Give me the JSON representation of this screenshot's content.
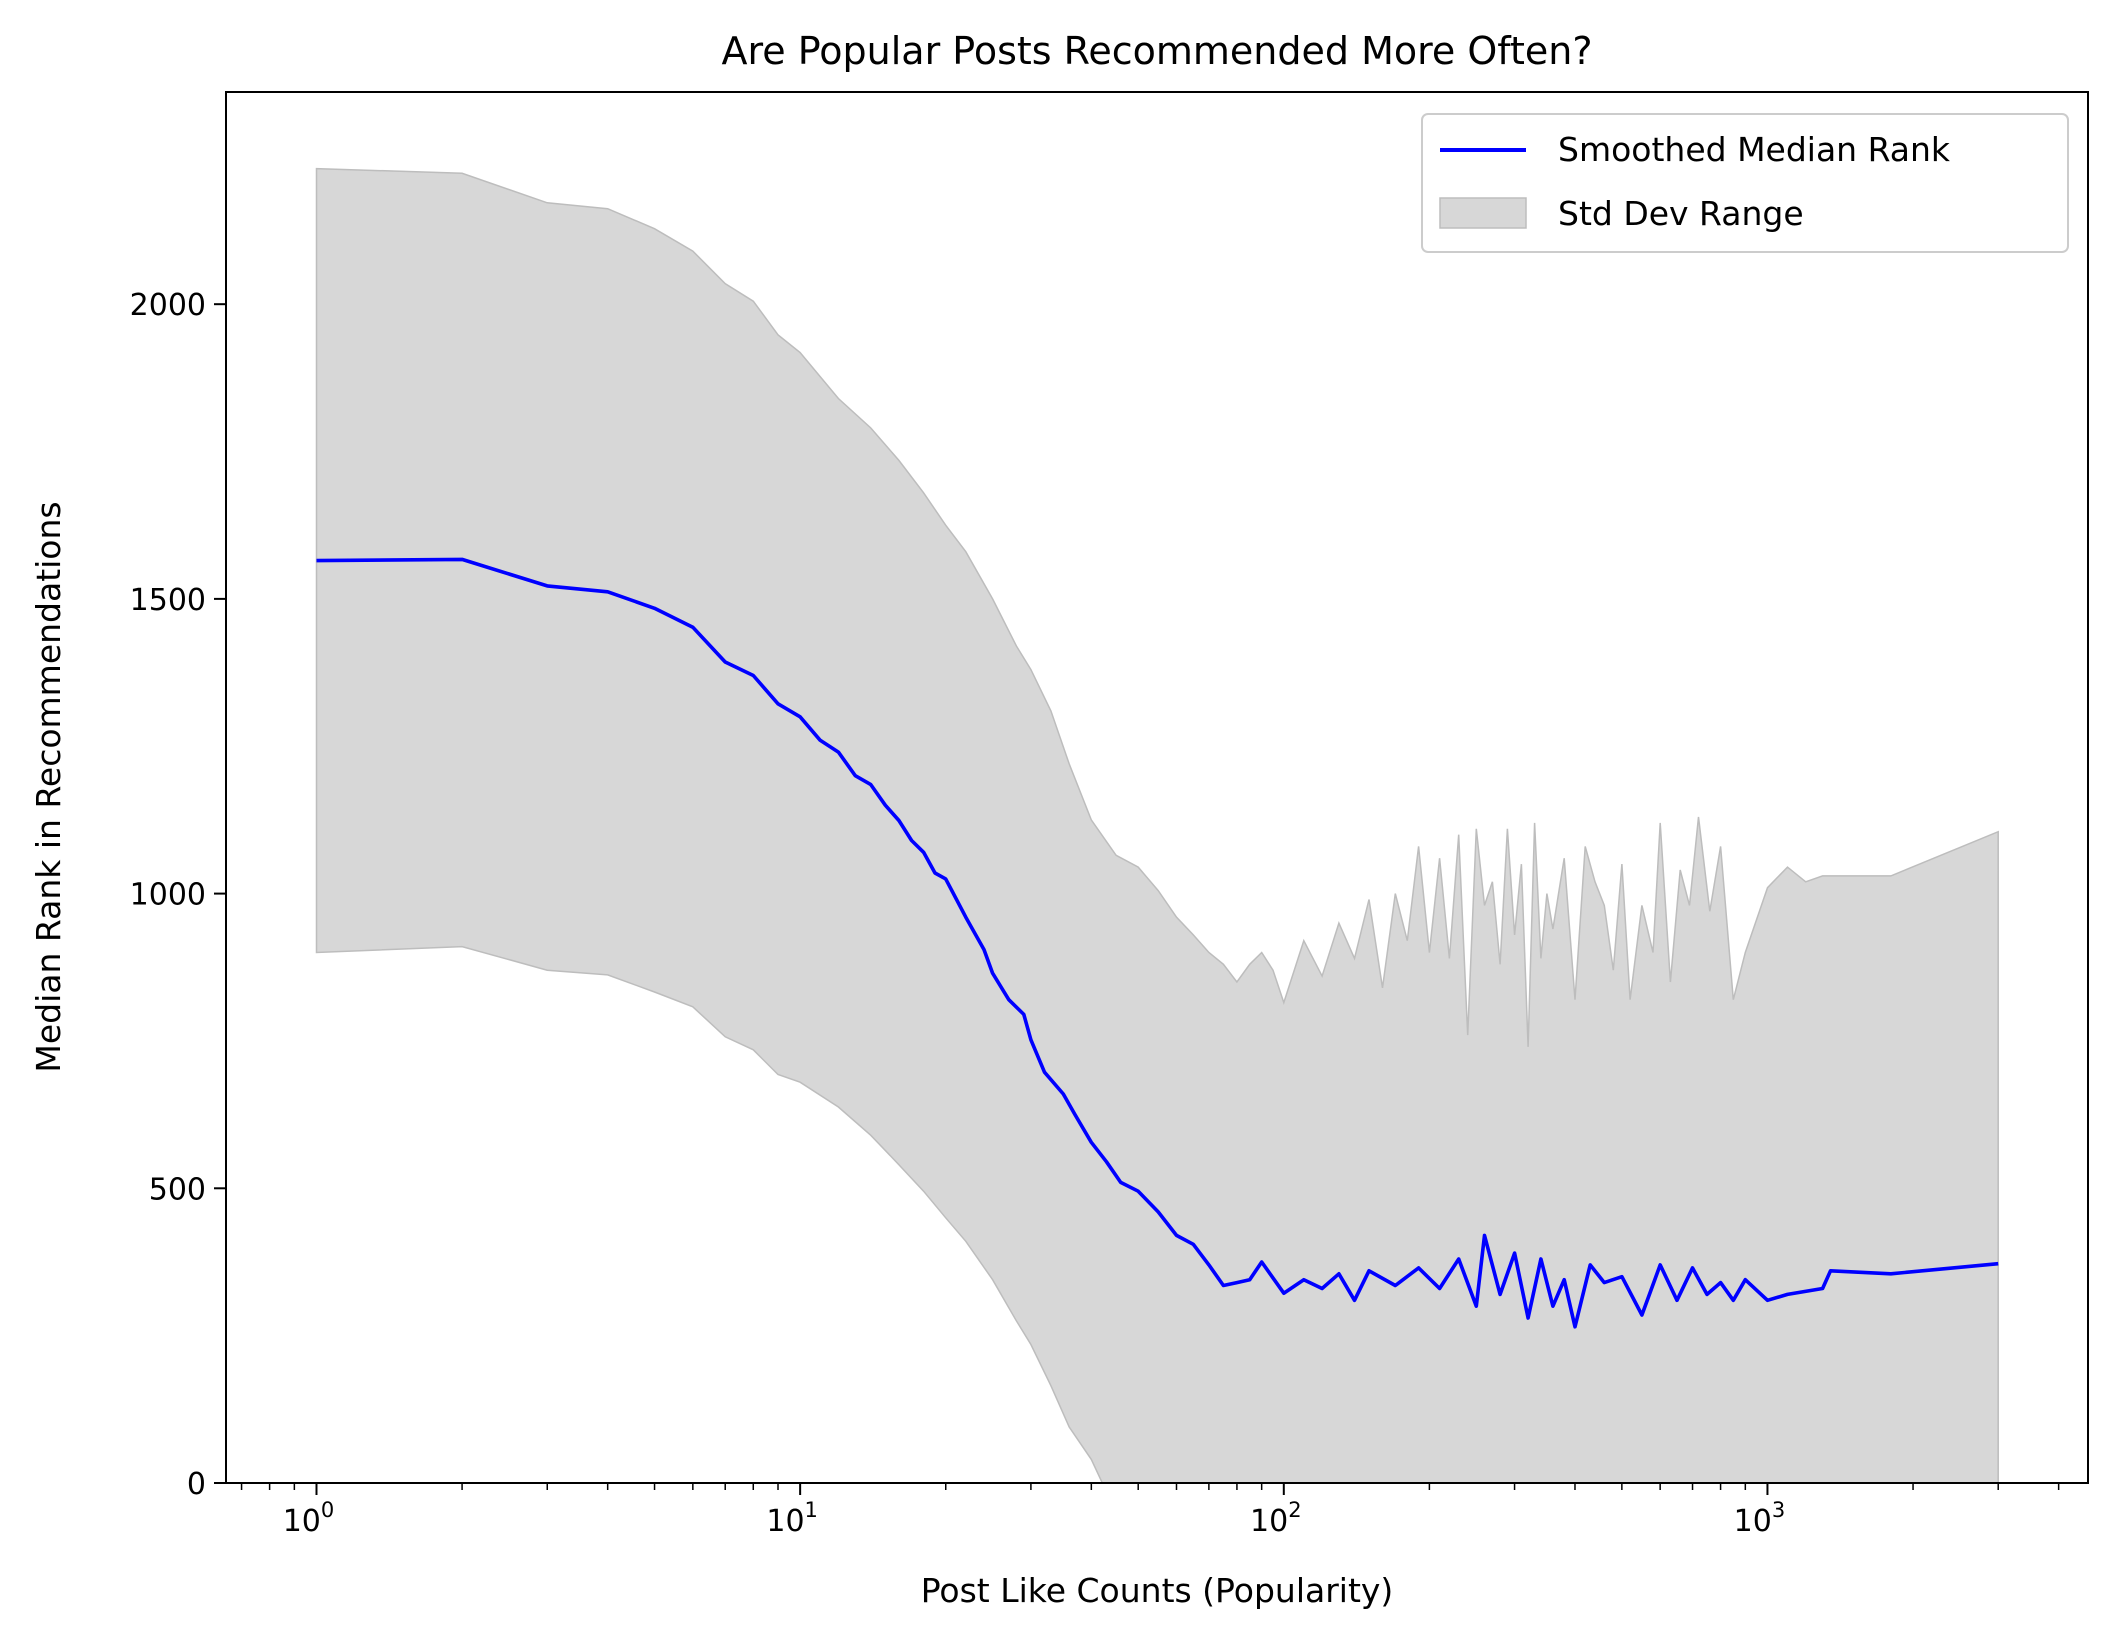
{
  "chart_data": {
    "type": "line",
    "title": "Are Popular Posts Recommended More Often?",
    "xlabel": "Post Like Counts (Popularity)",
    "ylabel": "Median Rank in Recommendations",
    "xscale": "log",
    "xlim": [
      0.65,
      4600
    ],
    "ylim": [
      0,
      2360
    ],
    "grid": false,
    "legend_position": "top-right",
    "x_ticks": [
      {
        "base": "10",
        "exp": "0",
        "value": 1
      },
      {
        "base": "10",
        "exp": "1",
        "value": 10
      },
      {
        "base": "10",
        "exp": "2",
        "value": 100
      },
      {
        "base": "10",
        "exp": "3",
        "value": 1000
      }
    ],
    "y_ticks": [
      0,
      500,
      1000,
      1500,
      2000
    ],
    "series": [
      {
        "name": "Smoothed Median Rank",
        "kind": "line",
        "color": "#0000ff",
        "x": [
          1,
          2,
          3,
          4,
          5,
          6,
          7,
          8,
          9,
          10,
          11,
          12,
          13,
          14,
          15,
          16,
          17,
          18,
          19,
          20,
          22,
          24,
          25,
          27,
          29,
          30,
          32,
          35,
          37,
          40,
          43,
          46,
          50,
          55,
          60,
          65,
          70,
          75,
          80,
          85,
          90,
          100,
          110,
          120,
          130,
          140,
          150,
          170,
          190,
          210,
          230,
          250,
          260,
          280,
          300,
          320,
          340,
          360,
          380,
          400,
          430,
          460,
          500,
          550,
          600,
          650,
          700,
          750,
          800,
          850,
          900,
          1000,
          1100,
          1300,
          1350,
          1800,
          3000
        ],
        "y": [
          1565,
          1567,
          1522,
          1512,
          1484,
          1452,
          1393,
          1370,
          1322,
          1300,
          1260,
          1240,
          1200,
          1185,
          1150,
          1124,
          1090,
          1070,
          1035,
          1025,
          960,
          905,
          865,
          820,
          795,
          752,
          697,
          660,
          625,
          578,
          545,
          510,
          495,
          460,
          420,
          405,
          370,
          335,
          340,
          345,
          375,
          322,
          345,
          330,
          355,
          310,
          360,
          335,
          365,
          330,
          380,
          300,
          420,
          320,
          390,
          280,
          380,
          300,
          345,
          265,
          370,
          340,
          350,
          285,
          370,
          310,
          365,
          320,
          340,
          310,
          345,
          310,
          320,
          330,
          360,
          355,
          372
        ]
      },
      {
        "name": "Std Dev Range",
        "kind": "band",
        "color": "#d7d7d7",
        "x": [
          1,
          2,
          3,
          4,
          5,
          6,
          7,
          8,
          9,
          10,
          12,
          14,
          16,
          18,
          20,
          22,
          25,
          28,
          30,
          33,
          36,
          40,
          45,
          50,
          55,
          60,
          65,
          70,
          75,
          80,
          85,
          90,
          95,
          100,
          110,
          120,
          130,
          140,
          150,
          160,
          170,
          180,
          190,
          200,
          210,
          220,
          230,
          240,
          250,
          260,
          270,
          280,
          290,
          300,
          310,
          320,
          330,
          340,
          350,
          360,
          380,
          400,
          420,
          440,
          460,
          480,
          500,
          520,
          550,
          580,
          600,
          630,
          660,
          690,
          720,
          760,
          800,
          850,
          900,
          1000,
          1100,
          1200,
          1300,
          1400,
          1800,
          3000
        ],
        "upper": [
          2230,
          2222,
          2172,
          2162,
          2128,
          2090,
          2035,
          2005,
          1948,
          1918,
          1840,
          1790,
          1735,
          1680,
          1625,
          1580,
          1500,
          1420,
          1380,
          1310,
          1220,
          1125,
          1065,
          1045,
          1005,
          960,
          930,
          900,
          880,
          850,
          880,
          900,
          870,
          815,
          920,
          860,
          950,
          890,
          990,
          840,
          1000,
          920,
          1080,
          900,
          1060,
          890,
          1100,
          760,
          1110,
          980,
          1020,
          880,
          1110,
          930,
          1050,
          740,
          1120,
          890,
          1000,
          940,
          1060,
          820,
          1080,
          1020,
          980,
          870,
          1050,
          820,
          980,
          900,
          1120,
          850,
          1040,
          980,
          1130,
          970,
          1080,
          820,
          900,
          1010,
          1045,
          1020,
          1030,
          1030,
          1030,
          1105
        ],
        "lower": [
          900,
          910,
          870,
          862,
          833,
          808,
          757,
          735,
          693,
          680,
          638,
          590,
          540,
          495,
          450,
          410,
          345,
          275,
          235,
          165,
          95,
          40,
          -50,
          -120,
          -180,
          -230,
          -260,
          -280,
          -300,
          -310,
          -320,
          -300,
          -320,
          -340,
          -300,
          -320,
          -300,
          -310,
          -290,
          -320,
          -300,
          -320,
          -300,
          -310,
          -300,
          -320,
          -300,
          -330,
          -290,
          -310,
          -300,
          -320,
          -300,
          -310,
          -320,
          -330,
          -300,
          -320,
          -310,
          -320,
          -300,
          -330,
          -300,
          -310,
          -300,
          -320,
          -300,
          -330,
          -310,
          -300,
          -320,
          -310,
          -300,
          -320,
          -300,
          -310,
          -320,
          -300,
          -310,
          -320,
          -300,
          -310,
          -300,
          -310,
          -300,
          -300
        ]
      }
    ]
  }
}
